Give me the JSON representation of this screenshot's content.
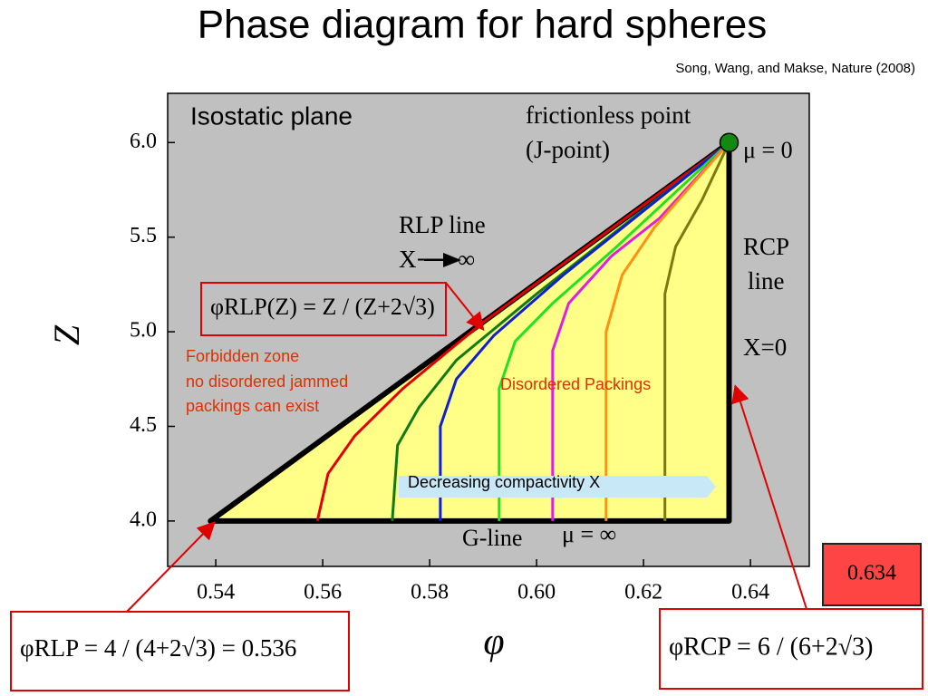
{
  "chart_data": {
    "type": "line",
    "title": "Phase diagram for hard spheres",
    "subtitle": "Song, Wang, and Makse, Nature (2008)",
    "xlabel": "φ",
    "ylabel": "Z",
    "xlim": [
      0.531,
      0.651
    ],
    "ylim": [
      3.76,
      6.26
    ],
    "xticks": [
      0.54,
      0.56,
      0.58,
      {
        "value": 0.6,
        "label": "0.60"
      },
      0.62,
      0.64
    ],
    "yticks": [
      {
        "value": 4,
        "label": "4.0"
      },
      4.5,
      {
        "value": 5,
        "label": "5.0"
      },
      5.5,
      {
        "value": 6,
        "label": "6.0"
      }
    ],
    "region": {
      "x": [
        0.539,
        0.636,
        0.636
      ],
      "y": [
        4.0,
        6.0,
        4.0
      ],
      "color": "#ffff88"
    },
    "jpoint": {
      "x": 0.636,
      "y": 6.0,
      "color": "#128a12"
    },
    "series": [
      {
        "color": "#e00000",
        "x": [
          0.559,
          0.561,
          0.566,
          0.575,
          0.59,
          0.636
        ],
        "y": [
          4.0,
          4.25,
          4.45,
          4.7,
          5.05,
          6.0
        ]
      },
      {
        "color": "#127a12",
        "x": [
          0.573,
          0.574,
          0.578,
          0.585,
          0.6,
          0.636
        ],
        "y": [
          4.0,
          4.4,
          4.6,
          4.85,
          5.2,
          6.0
        ]
      },
      {
        "color": "#1020d0",
        "x": [
          0.582,
          0.582,
          0.585,
          0.592,
          0.605,
          0.636
        ],
        "y": [
          4.0,
          4.5,
          4.75,
          4.98,
          5.3,
          6.0
        ]
      },
      {
        "color": "#22e022",
        "x": [
          0.593,
          0.593,
          0.596,
          0.603,
          0.615,
          0.636
        ],
        "y": [
          4.0,
          4.7,
          4.95,
          5.15,
          5.45,
          6.0
        ]
      },
      {
        "color": "#e020e0",
        "x": [
          0.603,
          0.603,
          0.606,
          0.614,
          0.623,
          0.636
        ],
        "y": [
          4.0,
          4.9,
          5.15,
          5.4,
          5.6,
          6.0
        ]
      },
      {
        "color": "#ff9010",
        "x": [
          0.613,
          0.613,
          0.616,
          0.622,
          0.636
        ],
        "y": [
          4.0,
          5.0,
          5.3,
          5.55,
          6.0
        ]
      },
      {
        "color": "#7a7a10",
        "x": [
          0.624,
          0.624,
          0.626,
          0.631,
          0.636
        ],
        "y": [
          4.0,
          5.2,
          5.45,
          5.7,
          6.0
        ]
      }
    ],
    "annotations": [
      "Isostatic plane",
      "frictionless point",
      "(J-point)",
      "μ = 0",
      "RLP line",
      "X⟶ ∞",
      "RCP",
      "line",
      "X=0",
      "Forbidden zone",
      "no disordered jammed",
      "packings can exist",
      "Disordered Packings",
      "Decreasing compactivity X",
      "G-line",
      "μ = ∞",
      "φRLP(Z) = Z / (Z+2√3)",
      "φRLP = 4 / (4+2√3) = 0.536",
      "φRCP = 6 / (6+2√3)",
      "0.634"
    ]
  }
}
